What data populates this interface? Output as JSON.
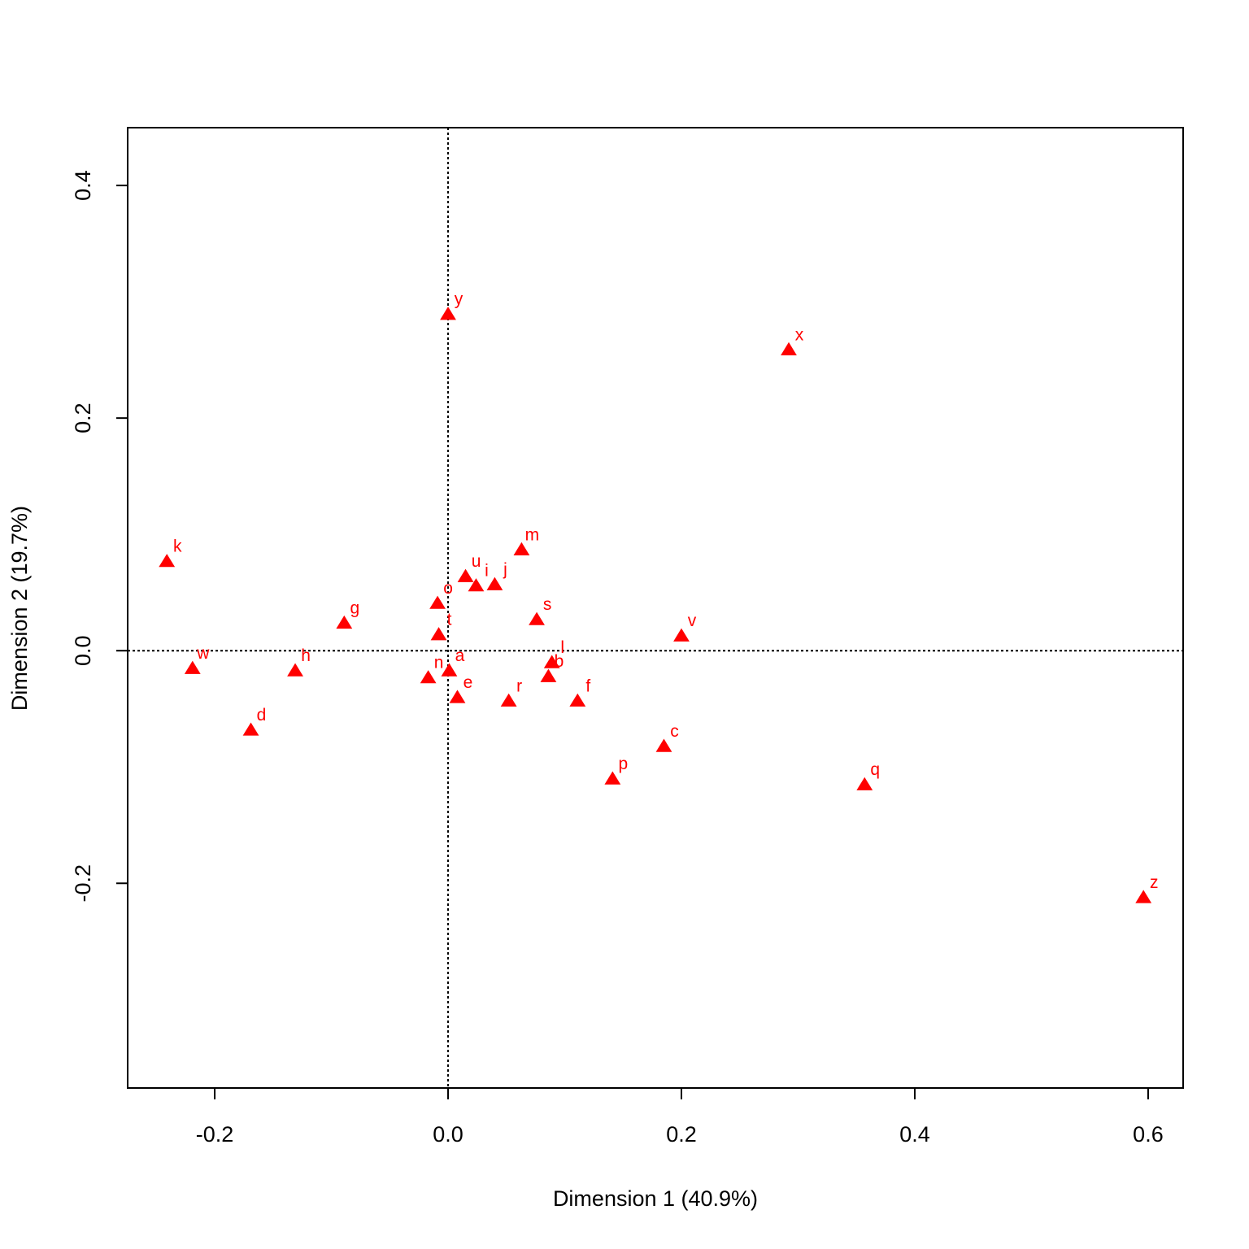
{
  "chart_data": {
    "type": "scatter",
    "xlabel": "Dimension 1 (40.9%)",
    "ylabel": "Dimension 2 (19.7%)",
    "xlim": [
      -0.2746,
      0.63
    ],
    "ylim": [
      -0.376,
      0.4497
    ],
    "xticks": [
      -0.2,
      {
        "value": 0,
        "label": "0.0"
      },
      0.2,
      0.4,
      0.6
    ],
    "yticks": [
      -0.2,
      {
        "value": 0,
        "label": "0.0"
      },
      0.2,
      0.4
    ],
    "hlines": [
      0
    ],
    "vlines": [
      0
    ],
    "color": "#ff0000",
    "marker": "triangle",
    "labels": [
      "y",
      "x",
      "k",
      "m",
      "u",
      "i",
      "j",
      "o",
      "g",
      "s",
      "t",
      "v",
      "w",
      "h",
      "a",
      "l",
      "n",
      "b",
      "e",
      "r",
      "f",
      "d",
      "c",
      "p",
      "q",
      "z"
    ],
    "x": [
      0.0,
      0.292,
      -0.241,
      0.063,
      0.015,
      0.024,
      0.04,
      -0.009,
      -0.089,
      0.076,
      -0.008,
      0.2,
      -0.219,
      -0.131,
      0.001,
      0.089,
      -0.017,
      0.086,
      0.008,
      0.052,
      0.111,
      -0.169,
      0.185,
      0.141,
      0.357,
      0.596
    ],
    "values": [
      0.2895,
      0.259,
      0.077,
      0.087,
      0.064,
      0.056,
      0.057,
      0.041,
      0.024,
      0.027,
      0.014,
      0.013,
      -0.015,
      -0.017,
      -0.017,
      -0.01,
      -0.023,
      -0.022,
      -0.04,
      -0.043,
      -0.043,
      -0.068,
      -0.082,
      -0.11,
      -0.115,
      -0.212
    ]
  }
}
